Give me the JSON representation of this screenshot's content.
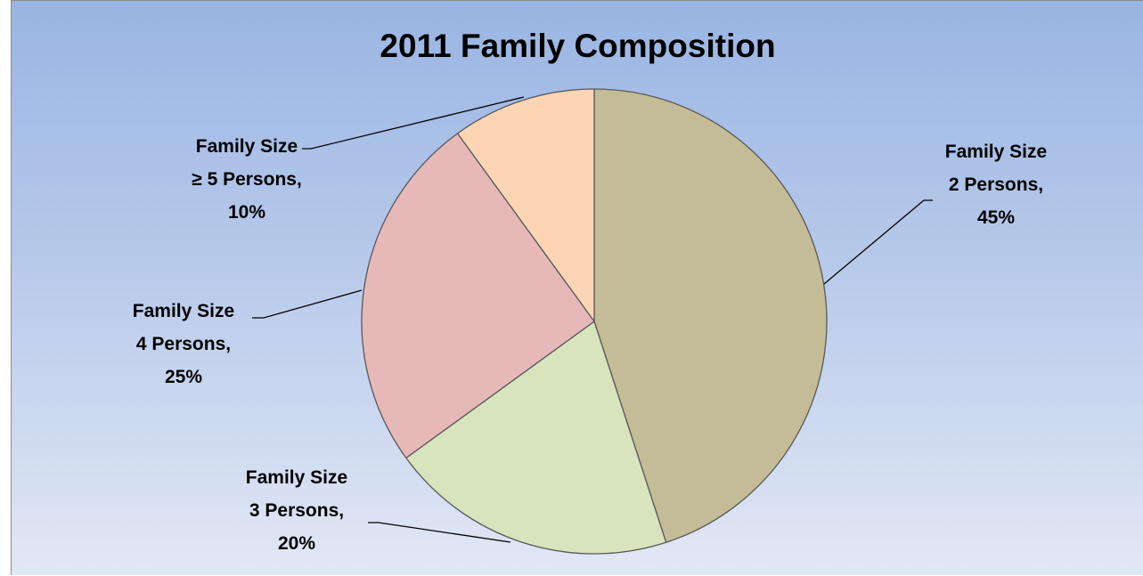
{
  "chart_data": {
    "type": "pie",
    "title": "2011 Family Composition",
    "slices": [
      {
        "label_lines": [
          "Family Size",
          "2 Persons,",
          "45%"
        ],
        "value": 45,
        "color": "#c4bc96"
      },
      {
        "label_lines": [
          "Family Size",
          "3 Persons,",
          "20%"
        ],
        "value": 20,
        "color": "#d7e4bd"
      },
      {
        "label_lines": [
          "Family Size",
          "4 Persons,",
          "25%"
        ],
        "value": 25,
        "color": "#e6b9b8"
      },
      {
        "label_lines": [
          "Family Size",
          "≥ 5 Persons,",
          "10%"
        ],
        "value": 10,
        "color": "#fcd5b5"
      }
    ],
    "start_angle_deg": 0,
    "direction": "clockwise",
    "legend": "none",
    "data_labels": "outside with leader lines"
  }
}
